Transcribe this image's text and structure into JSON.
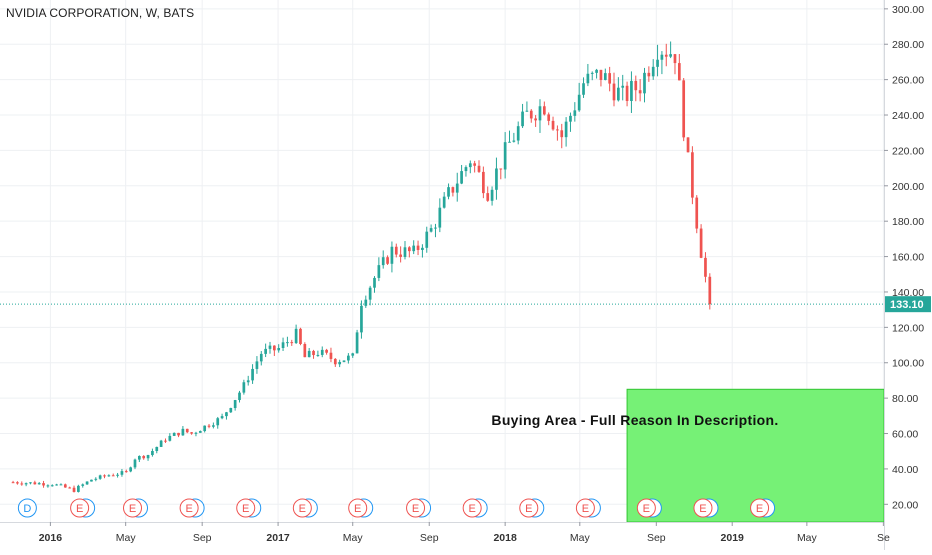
{
  "header": {
    "title": "NVIDIA CORPORATION, W, BATS"
  },
  "annotation": {
    "label": "Buying Area - Full Reason In Description."
  },
  "last_price": {
    "label": "133.10",
    "value": 133.1
  },
  "colors": {
    "up": "#26a69a",
    "down": "#ef5350",
    "last_price": "#26a69a",
    "buy_zone_fill": "#6ff06f",
    "buy_zone_border": "#31c531",
    "event_e": "#ef5350",
    "event_d": "#2196f3"
  },
  "events": [
    {
      "label": "D",
      "type": "dividend",
      "date": "2015-11-25"
    },
    {
      "label": "E",
      "type": "earnings",
      "date": "2016-02-17"
    },
    {
      "label": "E",
      "type": "earnings",
      "date": "2016-05-12"
    },
    {
      "label": "E",
      "type": "earnings",
      "date": "2016-08-11"
    },
    {
      "label": "E",
      "type": "earnings",
      "date": "2016-11-10"
    },
    {
      "label": "E",
      "type": "earnings",
      "date": "2017-02-09"
    },
    {
      "label": "E",
      "type": "earnings",
      "date": "2017-05-09"
    },
    {
      "label": "E",
      "type": "earnings",
      "date": "2017-08-10"
    },
    {
      "label": "E",
      "type": "earnings",
      "date": "2017-11-09"
    },
    {
      "label": "E",
      "type": "earnings",
      "date": "2018-02-08"
    },
    {
      "label": "E",
      "type": "earnings",
      "date": "2018-05-10"
    },
    {
      "label": "E",
      "type": "earnings",
      "date": "2018-08-16"
    },
    {
      "label": "E",
      "type": "earnings",
      "date": "2018-11-15"
    },
    {
      "label": "E",
      "type": "earnings",
      "date": "2019-02-14"
    }
  ],
  "chart_data": {
    "type": "line",
    "subtype": "candlestick",
    "title": "NVIDIA CORPORATION, W, BATS",
    "xlabel": "",
    "ylabel": "",
    "xlim": [
      "2015-10-12",
      "2019-09-02"
    ],
    "ylim": [
      10,
      305
    ],
    "yscale": "linear",
    "grid": true,
    "x_ticks": [
      {
        "label": "2016",
        "date": "2016-01-01"
      },
      {
        "label": "May",
        "date": "2016-05-01"
      },
      {
        "label": "Sep",
        "date": "2016-09-01"
      },
      {
        "label": "2017",
        "date": "2017-01-01"
      },
      {
        "label": "May",
        "date": "2017-05-01"
      },
      {
        "label": "Sep",
        "date": "2017-09-01"
      },
      {
        "label": "2018",
        "date": "2018-01-01"
      },
      {
        "label": "May",
        "date": "2018-05-01"
      },
      {
        "label": "Sep",
        "date": "2018-09-01"
      },
      {
        "label": "2019",
        "date": "2019-01-01"
      },
      {
        "label": "May",
        "date": "2019-05-01"
      },
      {
        "label": "Se",
        "date": "2019-09-01"
      }
    ],
    "y_ticks": [
      "20.00",
      "40.00",
      "60.00",
      "80.00",
      "100.00",
      "120.00",
      "140.00",
      "160.00",
      "180.00",
      "200.00",
      "220.00",
      "240.00",
      "260.00",
      "280.00",
      "300.00"
    ],
    "y_tick_values": [
      20,
      40,
      60,
      80,
      100,
      120,
      140,
      160,
      180,
      200,
      220,
      240,
      260,
      280,
      300
    ],
    "buy_zone": {
      "x": [
        "2018-07-16",
        "2019-09-02"
      ],
      "y": [
        10,
        85
      ]
    },
    "series": [
      {
        "name": "",
        "x": [
          "2015-11-02",
          "2016-01-04",
          "2016-02-08",
          "2016-03-07",
          "2016-04-04",
          "2016-05-02",
          "2016-05-16",
          "2016-06-06",
          "2016-07-04",
          "2016-08-01",
          "2016-08-15",
          "2016-09-05",
          "2016-10-03",
          "2016-11-07",
          "2016-11-14",
          "2016-12-05",
          "2017-01-02",
          "2017-01-30",
          "2017-02-13",
          "2017-03-06",
          "2017-04-03",
          "2017-05-01",
          "2017-05-15",
          "2017-06-05",
          "2017-07-03",
          "2017-08-07",
          "2017-09-04",
          "2017-10-02",
          "2017-11-06",
          "2017-12-04",
          "2018-01-08",
          "2018-02-05",
          "2018-03-05",
          "2018-04-02",
          "2018-05-07",
          "2018-06-04",
          "2018-07-09",
          "2018-08-06",
          "2018-09-03",
          "2018-10-01",
          "2018-10-22",
          "2018-11-12",
          "2018-11-26"
        ],
        "y": [
          32.5,
          31.5,
          28.0,
          34.0,
          36.5,
          38.0,
          46.0,
          48.0,
          57.0,
          61.5,
          60.0,
          64.0,
          69.0,
          87.0,
          92.0,
          105.5,
          108.0,
          116.0,
          103.0,
          106.0,
          101.5,
          103.0,
          135.0,
          148.0,
          163.5,
          162.0,
          175.0,
          195.0,
          215.0,
          197.0,
          224.0,
          240.0,
          246.0,
          228.0,
          258.0,
          263.0,
          250.0,
          257.0,
          279.0,
          275.0,
          213.0,
          163.0,
          133.1
        ]
      }
    ]
  }
}
